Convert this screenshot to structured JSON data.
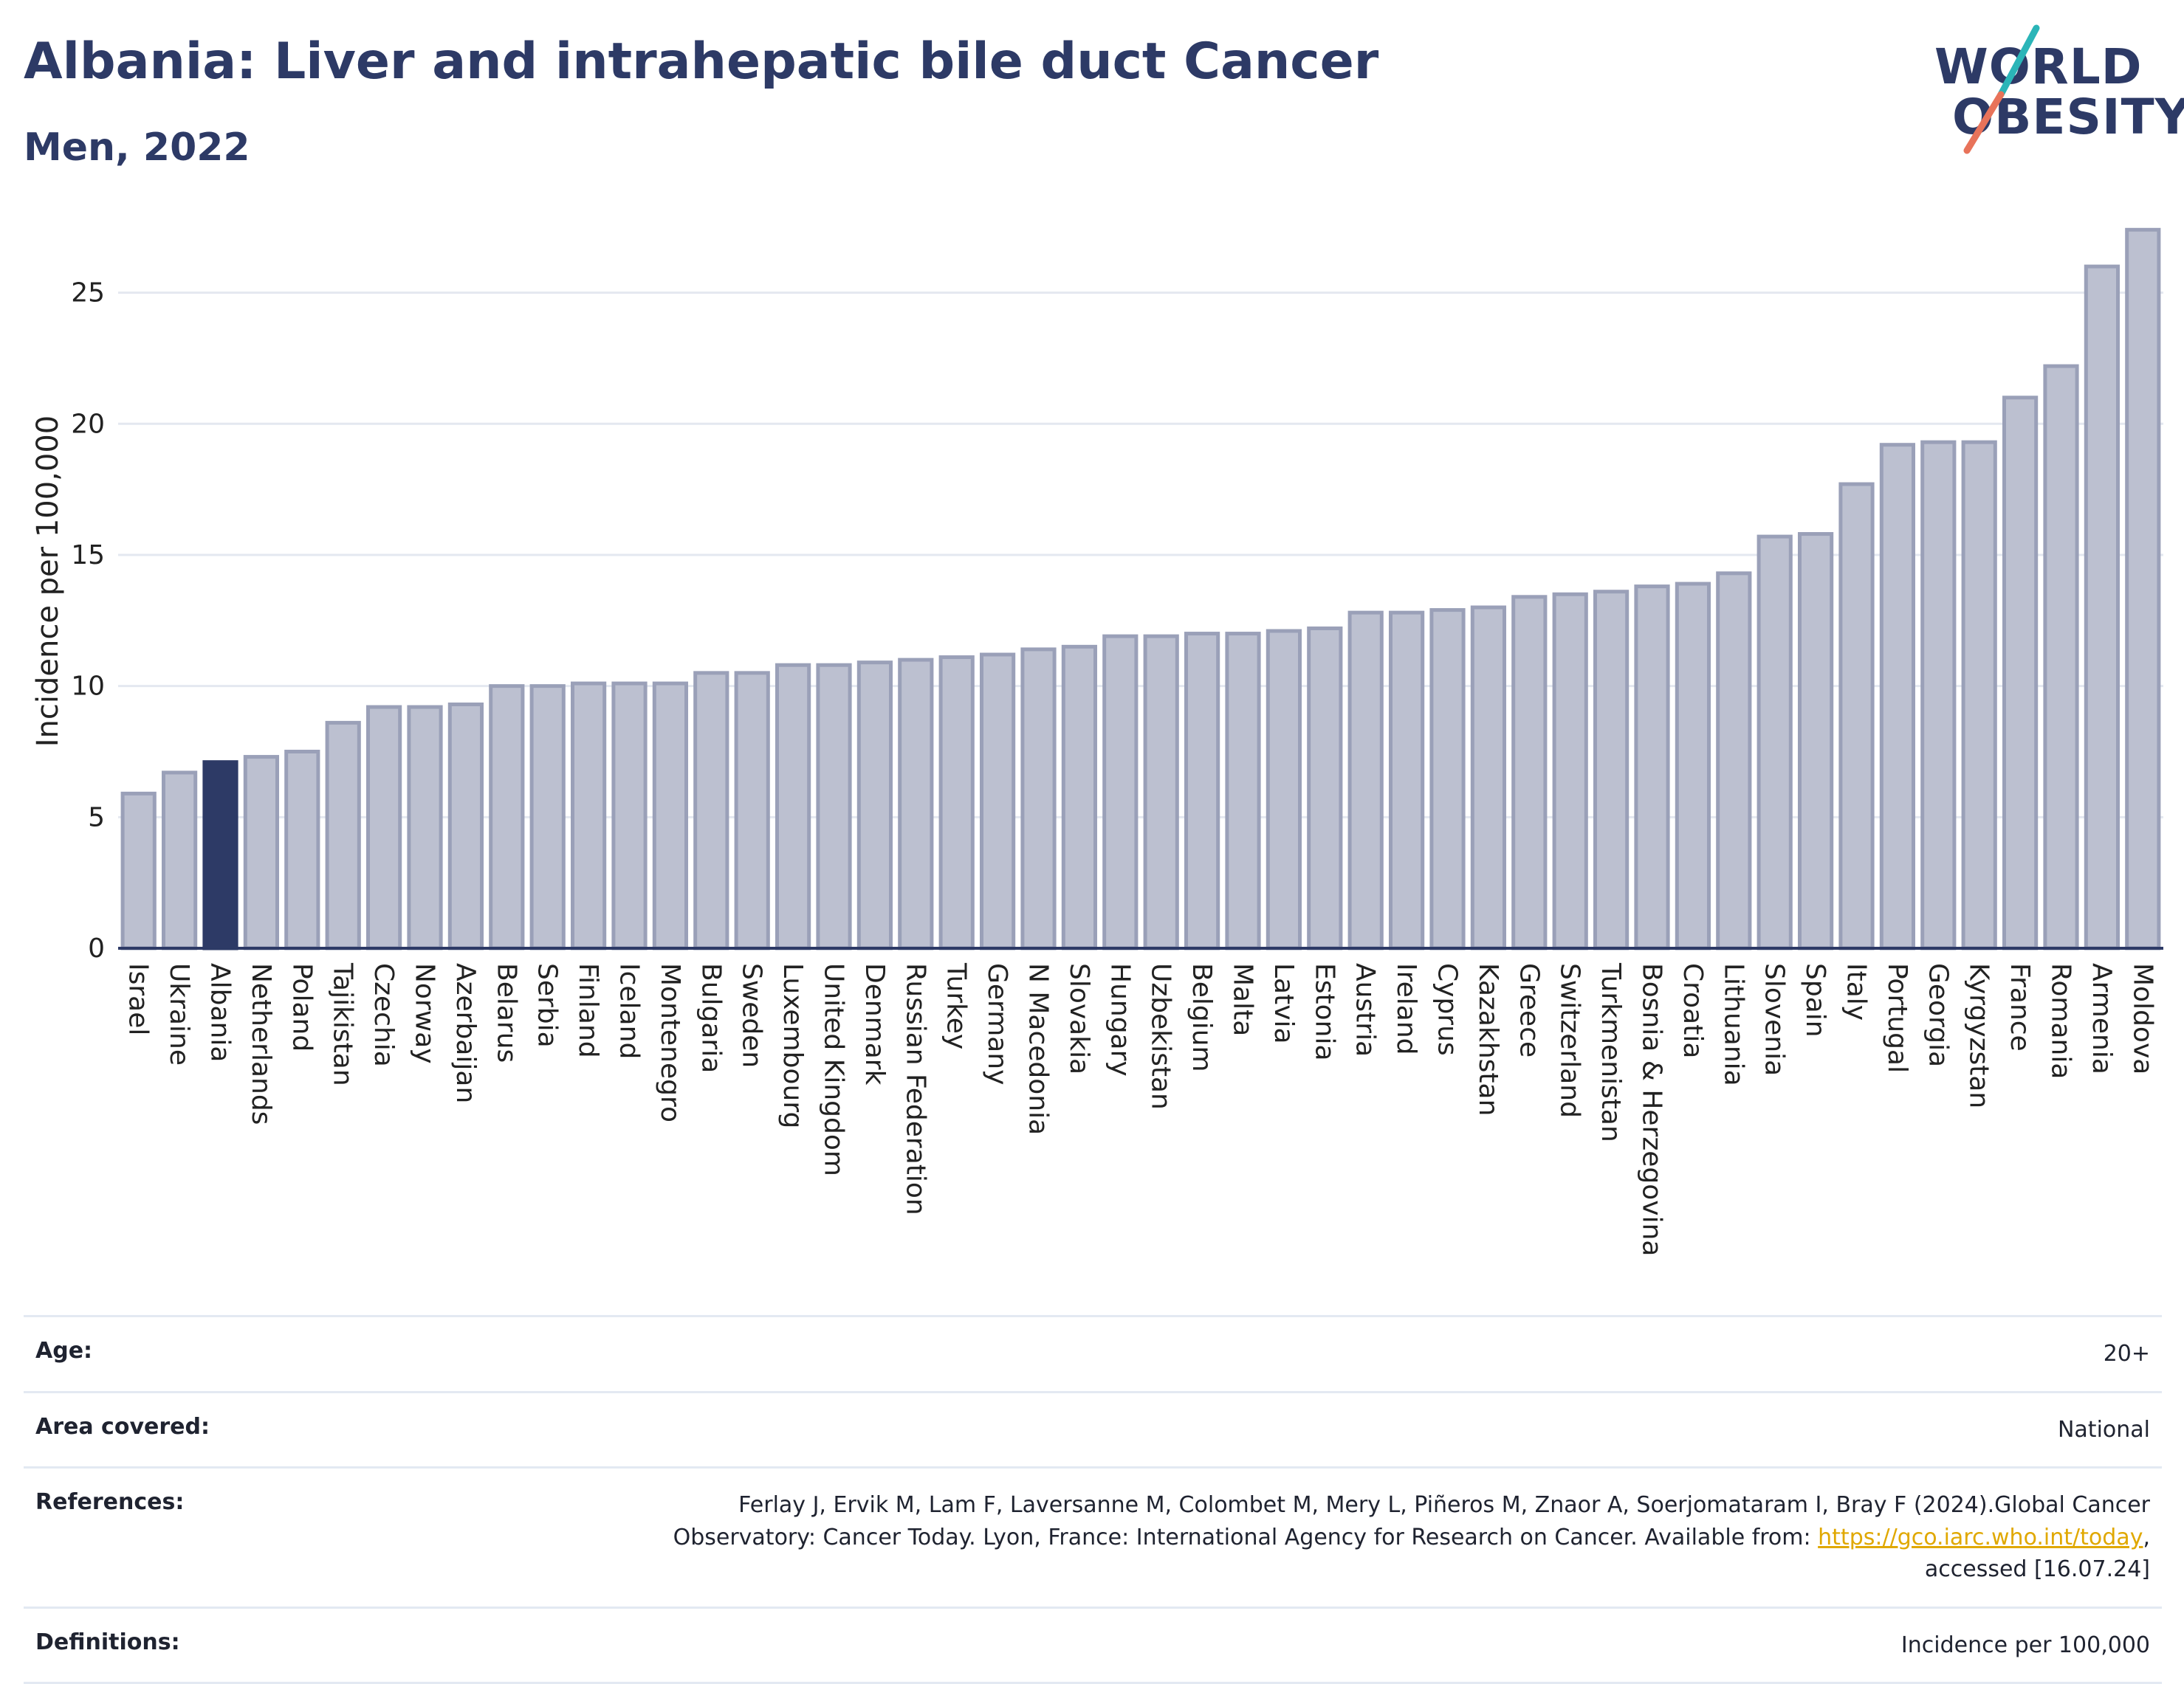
{
  "header": {
    "title": "Albania: Liver and intrahepatic bile duct Cancer",
    "subtitle": "Men, 2022"
  },
  "logo": {
    "line1": "WORLD",
    "line2": "OBESITY",
    "colors": {
      "text": "#2d3a66",
      "slash_top": "#2bb5b8",
      "slash_bottom": "#e8735a"
    }
  },
  "chart_data": {
    "type": "bar",
    "title": "Albania: Liver and intrahepatic bile duct Cancer",
    "subtitle": "Men, 2022",
    "xlabel": "",
    "ylabel": "Incidence per 100,000",
    "ylim": [
      0,
      28
    ],
    "yticks": [
      0,
      5,
      10,
      15,
      20,
      25
    ],
    "grid": true,
    "highlight": "Albania",
    "colors": {
      "bar": "#bcc0d0",
      "bar_edge": "#9aa0b8",
      "highlight": "#2d3a66",
      "axis": "#2d3a66",
      "grid": "#e4e8f0"
    },
    "categories": [
      "Israel",
      "Ukraine",
      "Albania",
      "Netherlands",
      "Poland",
      "Tajikistan",
      "Czechia",
      "Norway",
      "Azerbaijan",
      "Belarus",
      "Serbia",
      "Finland",
      "Iceland",
      "Montenegro",
      "Bulgaria",
      "Sweden",
      "Luxembourg",
      "United Kingdom",
      "Denmark",
      "Russian Federation",
      "Turkey",
      "Germany",
      "N Macedonia",
      "Slovakia",
      "Hungary",
      "Uzbekistan",
      "Belgium",
      "Malta",
      "Latvia",
      "Estonia",
      "Austria",
      "Ireland",
      "Cyprus",
      "Kazakhstan",
      "Greece",
      "Switzerland",
      "Turkmenistan",
      "Bosnia & Herzegovina",
      "Croatia",
      "Lithuania",
      "Slovenia",
      "Spain",
      "Italy",
      "Portugal",
      "Georgia",
      "Kyrgyzstan",
      "France",
      "Romania",
      "Armenia",
      "Moldova"
    ],
    "values": [
      5.9,
      6.7,
      7.1,
      7.3,
      7.5,
      8.6,
      9.2,
      9.2,
      9.3,
      10.0,
      10.0,
      10.1,
      10.1,
      10.1,
      10.5,
      10.5,
      10.8,
      10.8,
      10.9,
      11.0,
      11.1,
      11.2,
      11.4,
      11.5,
      11.9,
      11.9,
      12.0,
      12.0,
      12.1,
      12.2,
      12.8,
      12.8,
      12.9,
      13.0,
      13.4,
      13.5,
      13.6,
      13.8,
      13.9,
      14.3,
      15.7,
      15.8,
      17.7,
      19.2,
      19.3,
      19.3,
      21.0,
      22.2,
      26.0,
      27.4
    ]
  },
  "meta": {
    "age_label": "Age:",
    "age_value": "20+",
    "area_label": "Area covered:",
    "area_value": "National",
    "references_label": "References:",
    "references_text1": "Ferlay J, Ervik M, Lam F, Laversanne M, Colombet M, Mery L, Piñeros M, Znaor A, Soerjomataram I, Bray F (2024).Global Cancer Observatory: Cancer Today. Lyon, France: International Agency for Research on Cancer. Available from: ",
    "references_link": "https://gco.iarc.who.int/today",
    "references_text2": ", accessed [16.07.24]",
    "definitions_label": "Definitions:",
    "definitions_value": "Incidence per 100,000"
  }
}
